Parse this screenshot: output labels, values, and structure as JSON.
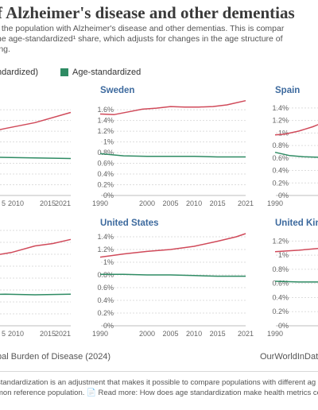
{
  "header": {
    "title": "f Alzheimer's disease and other dementias",
    "subtitle_lines": [
      "f the population with Alzheimer's disease and other dementias. This is compar",
      "he age-standardized¹ share, which adjusts for changes in the age structure of",
      "ing."
    ]
  },
  "legend": {
    "items": [
      {
        "label": "ndardized)",
        "color": "#c0392b"
      },
      {
        "label": "Age-standardized",
        "color": "#2e8b63"
      }
    ]
  },
  "colors": {
    "crude": "#d04a5a",
    "age": "#2e8b63",
    "grid": "#dddddd"
  },
  "chart_data": [
    {
      "type": "line",
      "title": "",
      "x_ticks": [
        "5",
        "2010",
        "2015",
        "2021"
      ],
      "y_ticks": [],
      "series": [
        {
          "values": [
            [
              2005,
              1.13
            ],
            [
              2010,
              1.25
            ],
            [
              2015,
              1.36
            ],
            [
              2021,
              1.55
            ]
          ]
        },
        {
          "values": [
            [
              2005,
              0.72
            ],
            [
              2010,
              0.71
            ],
            [
              2015,
              0.7
            ],
            [
              2021,
              0.69
            ]
          ]
        }
      ]
    },
    {
      "type": "line",
      "title": "Sweden",
      "x_ticks": [
        "1990",
        "2000",
        "2005",
        "2010",
        "2015",
        "2021"
      ],
      "y_ticks": [
        "0%",
        "0.2%",
        "0.4%",
        "0.6%",
        "0.8%",
        "1%",
        "1.2%",
        "1.4%",
        "1.6%"
      ],
      "ylim": [
        0,
        1.75
      ],
      "series": [
        {
          "values": [
            [
              1990,
              1.52
            ],
            [
              1993,
              1.51
            ],
            [
              1996,
              1.56
            ],
            [
              1999,
              1.61
            ],
            [
              2002,
              1.63
            ],
            [
              2005,
              1.66
            ],
            [
              2008,
              1.65
            ],
            [
              2011,
              1.65
            ],
            [
              2014,
              1.66
            ],
            [
              2017,
              1.69
            ],
            [
              2021,
              1.77
            ]
          ]
        },
        {
          "values": [
            [
              1990,
              0.78
            ],
            [
              1995,
              0.74
            ],
            [
              2000,
              0.73
            ],
            [
              2005,
              0.73
            ],
            [
              2010,
              0.73
            ],
            [
              2015,
              0.72
            ],
            [
              2021,
              0.72
            ]
          ]
        }
      ]
    },
    {
      "type": "line",
      "title": "Spain",
      "x_ticks": [
        "1990"
      ],
      "y_ticks": [
        "0%",
        "0.2%",
        "0.4%",
        "0.6%",
        "0.8%",
        "1%",
        "1.2%",
        "1.4%"
      ],
      "ylim": [
        0,
        1.5
      ],
      "series": [
        {
          "values": [
            [
              1990,
              0.97
            ],
            [
              1992,
              0.98
            ],
            [
              1995,
              1.03
            ],
            [
              1998,
              1.1
            ],
            [
              2000,
              1.16
            ]
          ]
        },
        {
          "values": [
            [
              1990,
              0.69
            ],
            [
              1993,
              0.64
            ],
            [
              1996,
              0.62
            ],
            [
              2000,
              0.61
            ]
          ]
        }
      ]
    },
    {
      "type": "line",
      "title": "",
      "x_ticks": [
        "5",
        "2010",
        "2015",
        "2021"
      ],
      "y_ticks": [],
      "series": [
        {
          "values": [
            [
              2005,
              1.0
            ],
            [
              2008,
              1.18
            ],
            [
              2011,
              1.23
            ],
            [
              2015,
              1.34
            ],
            [
              2018,
              1.38
            ],
            [
              2021,
              1.45
            ]
          ]
        },
        {
          "values": [
            [
              2005,
              0.52
            ],
            [
              2010,
              0.53
            ],
            [
              2015,
              0.52
            ],
            [
              2021,
              0.53
            ]
          ]
        }
      ]
    },
    {
      "type": "line",
      "title": "United States",
      "x_ticks": [
        "1990",
        "2000",
        "2005",
        "2010",
        "2015",
        "2021"
      ],
      "y_ticks": [
        "0%",
        "0.2%",
        "0.4%",
        "0.6%",
        "0.8%",
        "1%",
        "1.2%",
        "1.4%"
      ],
      "ylim": [
        0,
        1.5
      ],
      "series": [
        {
          "values": [
            [
              1990,
              1.08
            ],
            [
              1995,
              1.13
            ],
            [
              2000,
              1.17
            ],
            [
              2005,
              1.2
            ],
            [
              2010,
              1.25
            ],
            [
              2015,
              1.33
            ],
            [
              2019,
              1.4
            ],
            [
              2021,
              1.45
            ]
          ]
        },
        {
          "values": [
            [
              1990,
              0.81
            ],
            [
              1995,
              0.81
            ],
            [
              2000,
              0.8
            ],
            [
              2005,
              0.8
            ],
            [
              2010,
              0.79
            ],
            [
              2015,
              0.78
            ],
            [
              2021,
              0.78
            ]
          ]
        }
      ]
    },
    {
      "type": "line",
      "title": "United Kin",
      "x_ticks": [
        "1990"
      ],
      "y_ticks": [
        "0%",
        "0.2%",
        "0.4%",
        "0.6%",
        "0.8%",
        "1%",
        "1.2%"
      ],
      "ylim": [
        0,
        1.35
      ],
      "series": [
        {
          "values": [
            [
              1990,
              1.05
            ],
            [
              1995,
              1.07
            ],
            [
              2000,
              1.1
            ]
          ]
        },
        {
          "values": [
            [
              1990,
              0.63
            ],
            [
              1995,
              0.62
            ],
            [
              2000,
              0.62
            ]
          ]
        }
      ]
    }
  ],
  "footer": {
    "source": "bal Burden of Disease (2024)",
    "credit": "OurWorldInDat",
    "notes": [
      "standardization is an adjustment that makes it possible to compare populations with different ag",
      "mon reference population. 📄 Read more: How does age standardization make health metrics co"
    ]
  }
}
